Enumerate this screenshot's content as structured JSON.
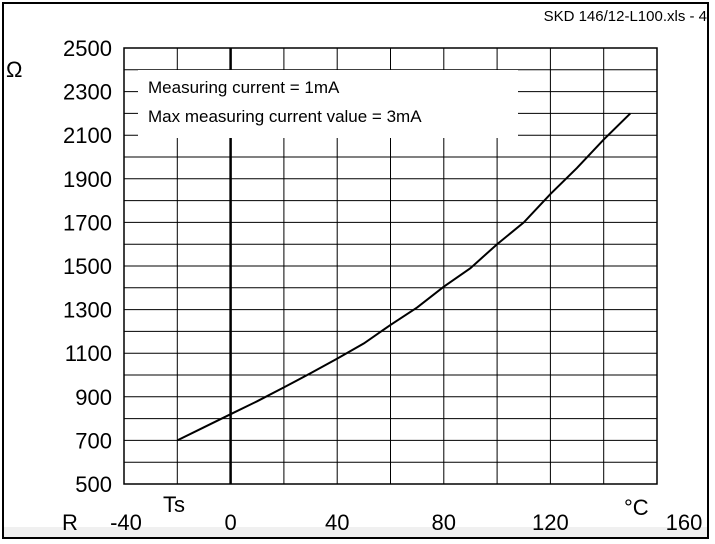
{
  "file_label": "SKD 146/12-L100.xls - 4",
  "chart_data": {
    "type": "line",
    "title": "",
    "ylabel": "Ω",
    "ylabel_prefix": "R",
    "xlabel": "°C",
    "ylim": [
      500,
      2500
    ],
    "xlim": [
      -40,
      160
    ],
    "y_ticks": [
      500,
      700,
      900,
      1100,
      1300,
      1500,
      1700,
      1900,
      2100,
      2300,
      2500
    ],
    "x_ticks": [
      -40,
      0,
      40,
      80,
      120,
      160
    ],
    "ts_label": "Ts",
    "grid": true,
    "legend_lines": [
      "Measuring current = 1mA",
      "Max measuring current value = 3mA"
    ],
    "series": [
      {
        "x": [
          -20,
          -10,
          0,
          10,
          20,
          30,
          40,
          50,
          60,
          70,
          80,
          90,
          100,
          110,
          120,
          130,
          140,
          150
        ],
        "y": [
          700,
          760,
          820,
          880,
          943,
          1008,
          1075,
          1145,
          1230,
          1310,
          1405,
          1490,
          1600,
          1700,
          1830,
          1950,
          2080,
          2200
        ]
      }
    ]
  }
}
